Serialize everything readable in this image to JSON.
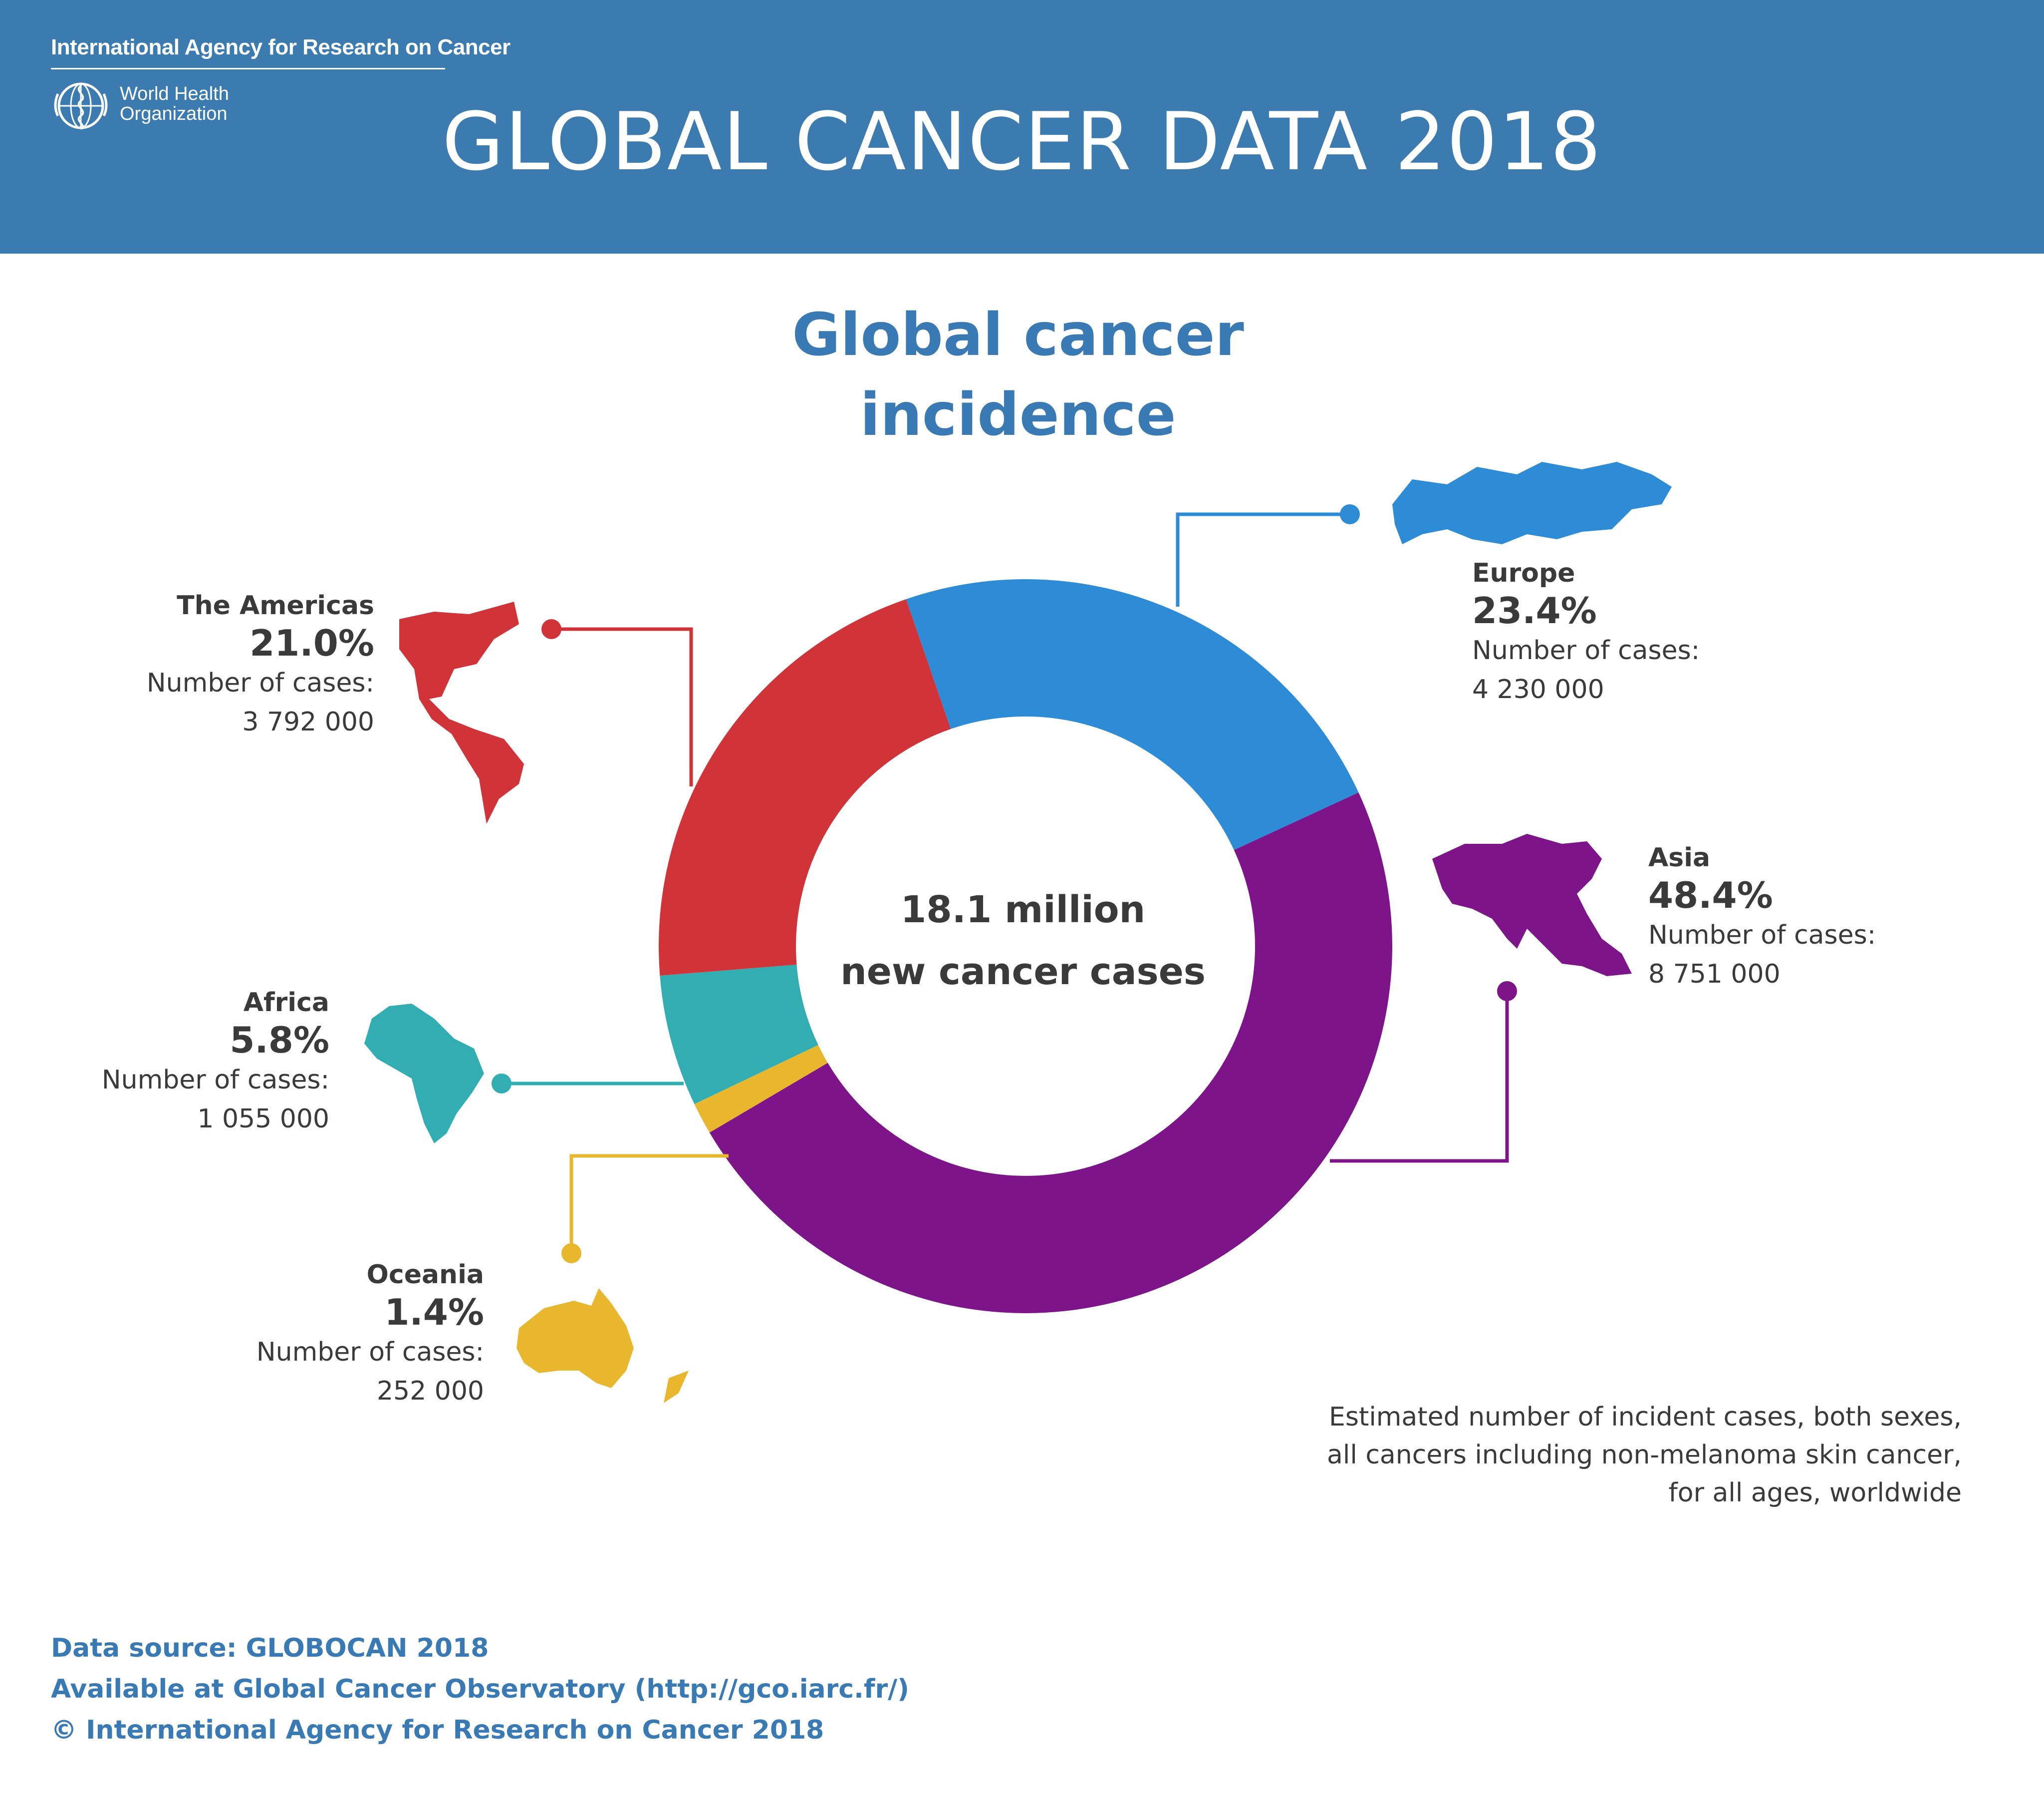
{
  "header": {
    "org_name": "International Agency for Research on Cancer",
    "who_line1": "World Health",
    "who_line2": "Organization",
    "title": "GLOBAL CANCER DATA 2018"
  },
  "subtitle_line1": "Global cancer",
  "subtitle_line2": "incidence",
  "center_line1": "18.1 million",
  "center_line2": "new cancer cases",
  "regions": {
    "americas": {
      "name": "The Americas",
      "pct": "21.0%",
      "cases_label": "Number of cases:",
      "cases": "3 792 000"
    },
    "europe": {
      "name": "Europe",
      "pct": "23.4%",
      "cases_label": "Number of cases:",
      "cases": "4 230 000"
    },
    "asia": {
      "name": "Asia",
      "pct": "48.4%",
      "cases_label": "Number of cases:",
      "cases": "8 751 000"
    },
    "africa": {
      "name": "Africa",
      "pct": "5.8%",
      "cases_label": "Number of cases:",
      "cases": "1 055 000"
    },
    "oceania": {
      "name": "Oceania",
      "pct": "1.4%",
      "cases_label": "Number of cases:",
      "cases": "252 000"
    }
  },
  "note_line1": "Estimated number of incident cases, both sexes,",
  "note_line2": "all cancers including non-melanoma skin cancer,",
  "note_line3": "for all ages, worldwide",
  "footer": {
    "line1": "Data source: GLOBOCAN 2018",
    "line2": "Available at Global Cancer Observatory (http://gco.iarc.fr/)",
    "line3": "© International Agency for Research on Cancer 2018"
  },
  "chart_data": {
    "type": "pie",
    "donut": true,
    "title": "Global cancer incidence",
    "total_label": "18.1 million new cancer cases",
    "categories": [
      "Europe",
      "Asia",
      "Oceania",
      "Africa",
      "The Americas"
    ],
    "values": [
      23.4,
      48.4,
      1.4,
      5.8,
      21.0
    ],
    "cases": [
      4230000,
      8751000,
      252000,
      1055000,
      3792000
    ],
    "colors": [
      "#2e8bd6",
      "#7d148a",
      "#e9b72e",
      "#32aeb3",
      "#d03438"
    ]
  }
}
